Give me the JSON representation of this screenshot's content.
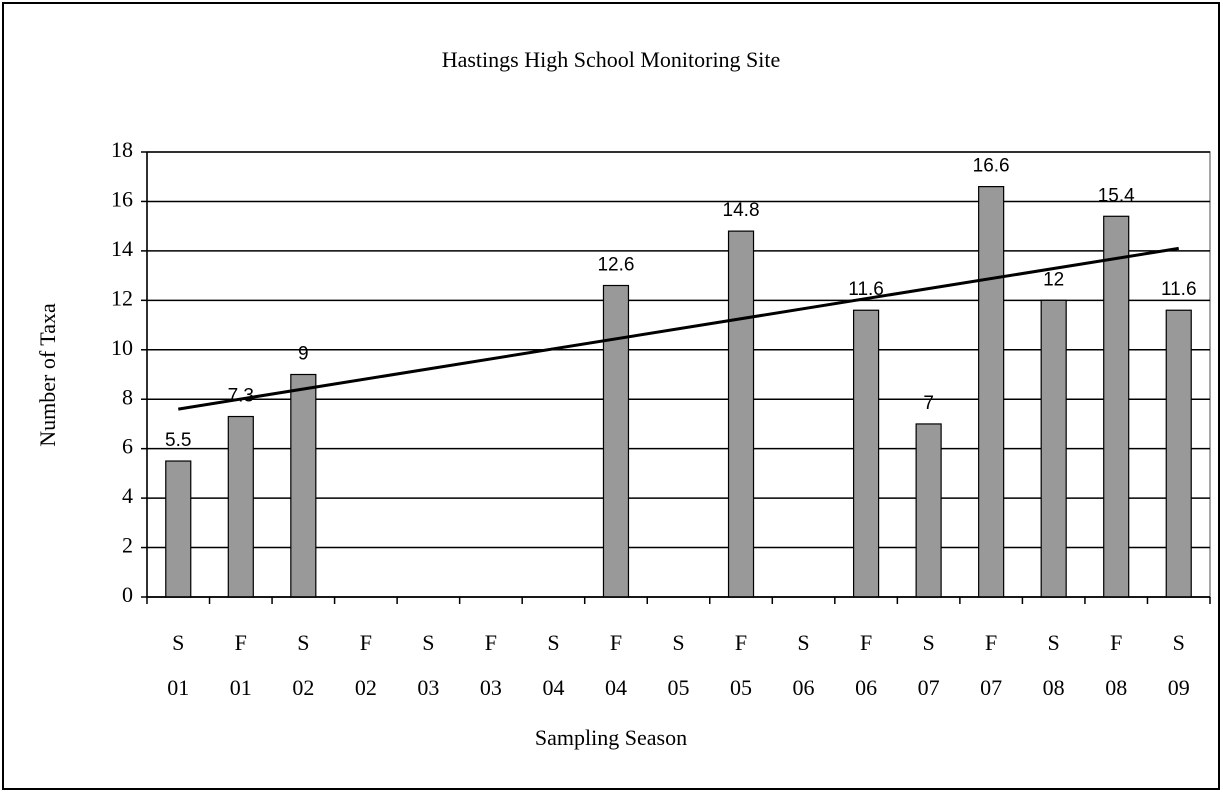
{
  "chart_data": {
    "type": "bar",
    "title": "Hastings High School Monitoring Site",
    "x_label": "Sampling Season",
    "y_label": "Number of Taxa",
    "categories": [
      [
        "S",
        "01"
      ],
      [
        "F",
        "01"
      ],
      [
        "S",
        "02"
      ],
      [
        "F",
        "02"
      ],
      [
        "S",
        "03"
      ],
      [
        "F",
        "03"
      ],
      [
        "S",
        "04"
      ],
      [
        "F",
        "04"
      ],
      [
        "S",
        "05"
      ],
      [
        "F",
        "05"
      ],
      [
        "S",
        "06"
      ],
      [
        "F",
        "06"
      ],
      [
        "S",
        "07"
      ],
      [
        "F",
        "07"
      ],
      [
        "S",
        "08"
      ],
      [
        "F",
        "08"
      ],
      [
        "S",
        "09"
      ]
    ],
    "values": [
      5.5,
      7.3,
      9,
      null,
      null,
      null,
      null,
      12.6,
      null,
      14.8,
      null,
      11.6,
      7,
      16.6,
      12,
      15.4,
      11.6
    ],
    "color": "#999999",
    "trendline": {
      "values": [
        7.6,
        14.1
      ],
      "color": "#000000"
    },
    "ylim": [
      0,
      18
    ],
    "yticks": [
      0,
      2,
      4,
      6,
      8,
      10,
      12,
      14,
      16,
      18
    ],
    "grid": true
  }
}
